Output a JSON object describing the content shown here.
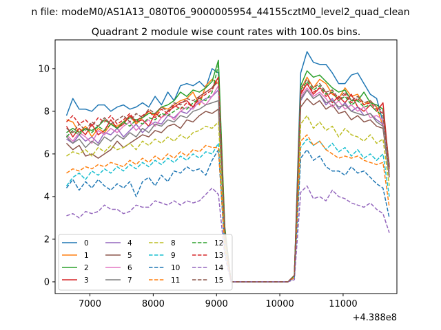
{
  "suptitle": "n file: modeM0/AS1A13_080T06_9000005954_44155cztM0_level2_quad_clean",
  "chart_data": {
    "type": "line",
    "title": "Quadrant 2 module wise count rates with 100.0s bins.",
    "xlabel": "",
    "ylabel": "",
    "offset_text": "+4.388e8",
    "xlim": [
      6450,
      11850
    ],
    "ylim": [
      -0.55,
      11.35
    ],
    "xticks": [
      7000,
      8000,
      9000,
      10000,
      11000
    ],
    "xtick_labels": [
      "7000",
      "8000",
      "9000",
      "10000",
      "11000"
    ],
    "yticks": [
      0,
      2,
      4,
      6,
      8,
      10
    ],
    "ytick_labels": [
      "0",
      "2",
      "4",
      "6",
      "8",
      "10"
    ],
    "grid": false,
    "legend_position": "lower-left",
    "legend_columns": 4,
    "x": [
      6630,
      6730,
      6830,
      6930,
      7030,
      7130,
      7230,
      7330,
      7430,
      7530,
      7630,
      7730,
      7830,
      7930,
      8030,
      8130,
      8230,
      8330,
      8430,
      8530,
      8630,
      8730,
      8830,
      8930,
      9030,
      9130,
      9230,
      9330,
      9430,
      9530,
      9630,
      9730,
      9830,
      9930,
      10030,
      10130,
      10230,
      10330,
      10430,
      10530,
      10630,
      10730,
      10830,
      10930,
      11030,
      11130,
      11230,
      11330,
      11430,
      11530,
      11630,
      11730
    ],
    "series": [
      {
        "name": "0",
        "color": "#1f77b4",
        "dash": "solid",
        "values": [
          7.8,
          8.6,
          8.1,
          8.1,
          8.0,
          8.3,
          8.3,
          8.0,
          8.2,
          8.3,
          8.1,
          8.2,
          8.4,
          8.2,
          8.7,
          8.3,
          8.9,
          8.5,
          9.2,
          9.3,
          9.2,
          9.4,
          9.1,
          10.0,
          9.8,
          2.5,
          0,
          0,
          0,
          0,
          0,
          0,
          0,
          0,
          0,
          0,
          0.3,
          9.8,
          10.8,
          10.3,
          10.2,
          10.2,
          9.8,
          9.3,
          9.3,
          9.7,
          9.8,
          9.3,
          8.8,
          8.6,
          7.5,
          5.5
        ]
      },
      {
        "name": "1",
        "color": "#ff7f0e",
        "dash": "solid",
        "values": [
          7.6,
          7.5,
          7.0,
          7.3,
          6.8,
          7.2,
          7.0,
          7.4,
          7.3,
          7.5,
          7.8,
          7.4,
          7.7,
          8.0,
          7.8,
          8.2,
          8.1,
          8.3,
          8.5,
          8.6,
          8.9,
          8.3,
          9.2,
          9.5,
          9.3,
          2.4,
          0,
          0,
          0,
          0,
          0,
          0,
          0,
          0,
          0,
          0,
          0.3,
          9.0,
          9.6,
          9.1,
          9.5,
          9.3,
          8.8,
          8.6,
          9.1,
          8.7,
          8.8,
          8.3,
          8.5,
          8.2,
          7.3,
          5.2
        ]
      },
      {
        "name": "2",
        "color": "#2ca02c",
        "dash": "solid",
        "values": [
          7.0,
          7.2,
          7.0,
          7.2,
          7.1,
          7.3,
          7.6,
          7.4,
          7.2,
          7.5,
          7.7,
          7.6,
          7.7,
          7.9,
          7.9,
          8.2,
          8.3,
          8.5,
          8.9,
          8.7,
          9.0,
          8.9,
          9.1,
          9.4,
          10.4,
          2.6,
          0,
          0,
          0,
          0,
          0,
          0,
          0,
          0,
          0,
          0,
          0.3,
          9.2,
          9.9,
          9.6,
          9.7,
          9.4,
          9.1,
          8.9,
          9.0,
          8.5,
          8.5,
          8.9,
          8.4,
          8.3,
          8.1,
          5.4
        ]
      },
      {
        "name": "3",
        "color": "#d62728",
        "dash": "solid",
        "values": [
          7.3,
          6.8,
          7.2,
          6.9,
          7.4,
          6.9,
          7.1,
          7.6,
          7.2,
          7.4,
          7.8,
          7.5,
          7.6,
          7.3,
          7.9,
          7.7,
          8.0,
          8.2,
          8.4,
          8.5,
          8.2,
          8.7,
          8.9,
          9.1,
          9.6,
          2.3,
          0,
          0,
          0,
          0,
          0,
          0,
          0,
          0,
          0,
          0,
          0.3,
          8.8,
          9.3,
          8.8,
          9.1,
          8.9,
          8.4,
          8.7,
          8.4,
          8.8,
          8.2,
          8.0,
          8.3,
          8.0,
          8.4,
          5.3
        ]
      },
      {
        "name": "4",
        "color": "#9467bd",
        "dash": "solid",
        "values": [
          6.7,
          6.5,
          6.9,
          6.6,
          6.8,
          6.5,
          7.0,
          6.9,
          7.2,
          6.8,
          7.1,
          7.4,
          7.0,
          7.3,
          7.5,
          7.4,
          7.8,
          7.7,
          8.0,
          7.9,
          8.2,
          8.4,
          8.6,
          8.7,
          9.0,
          2.2,
          0,
          0,
          0,
          0,
          0,
          0,
          0,
          0,
          0,
          0,
          0.3,
          8.5,
          9.0,
          8.6,
          8.8,
          8.3,
          8.6,
          8.1,
          8.4,
          8.0,
          8.2,
          7.8,
          7.9,
          7.6,
          7.4,
          5.0
        ]
      },
      {
        "name": "5",
        "color": "#8c564b",
        "dash": "solid",
        "values": [
          6.5,
          6.2,
          6.4,
          5.9,
          6.0,
          5.8,
          6.0,
          6.2,
          6.6,
          6.3,
          6.5,
          6.7,
          6.9,
          6.8,
          7.1,
          7.0,
          7.3,
          7.4,
          7.2,
          7.6,
          7.5,
          7.8,
          8.0,
          7.9,
          8.1,
          2.1,
          0,
          0,
          0,
          0,
          0,
          0,
          0,
          0,
          0,
          0,
          0.2,
          8.2,
          8.6,
          8.3,
          8.5,
          8.1,
          8.3,
          7.9,
          8.0,
          7.6,
          7.8,
          7.5,
          7.6,
          7.3,
          7.2,
          4.9
        ]
      },
      {
        "name": "6",
        "color": "#e377c2",
        "dash": "solid",
        "values": [
          6.9,
          6.6,
          7.0,
          6.8,
          6.5,
          7.1,
          6.9,
          7.2,
          7.0,
          7.3,
          7.5,
          7.1,
          7.4,
          7.6,
          7.3,
          7.7,
          7.9,
          7.6,
          8.0,
          8.2,
          8.1,
          8.5,
          8.3,
          8.7,
          9.2,
          2.3,
          0,
          0,
          0,
          0,
          0,
          0,
          0,
          0,
          0,
          0,
          0.3,
          8.7,
          9.1,
          8.7,
          8.9,
          8.6,
          8.2,
          8.5,
          8.1,
          8.3,
          8.0,
          8.2,
          7.7,
          7.8,
          7.6,
          5.1
        ]
      },
      {
        "name": "7",
        "color": "#7f7f7f",
        "dash": "solid",
        "values": [
          6.8,
          6.5,
          6.7,
          6.3,
          6.6,
          6.4,
          6.8,
          6.6,
          6.9,
          6.7,
          7.0,
          6.8,
          7.2,
          7.0,
          7.4,
          7.3,
          7.6,
          7.5,
          7.8,
          7.7,
          8.0,
          8.1,
          8.3,
          8.4,
          8.5,
          2.2,
          0,
          0,
          0,
          0,
          0,
          0,
          0,
          0,
          0,
          0,
          0.3,
          8.6,
          9.0,
          8.6,
          8.8,
          8.4,
          8.5,
          8.2,
          8.3,
          8.0,
          7.9,
          7.8,
          7.9,
          7.5,
          7.3,
          5.0
        ]
      },
      {
        "name": "8",
        "color": "#bcbd22",
        "dash": "dashed",
        "values": [
          5.9,
          6.1,
          6.0,
          6.2,
          5.9,
          6.3,
          6.1,
          6.4,
          6.2,
          6.3,
          6.5,
          6.2,
          6.6,
          6.4,
          6.7,
          6.5,
          6.8,
          6.6,
          6.9,
          6.7,
          7.0,
          7.1,
          7.3,
          7.2,
          7.5,
          1.9,
          0,
          0,
          0,
          0,
          0,
          0,
          0,
          0,
          0,
          0,
          0.2,
          7.4,
          7.8,
          7.2,
          7.5,
          7.1,
          7.3,
          6.8,
          7.2,
          6.9,
          6.8,
          6.6,
          6.9,
          6.5,
          6.7,
          4.5
        ]
      },
      {
        "name": "9",
        "color": "#17becf",
        "dash": "dashed",
        "values": [
          4.5,
          4.9,
          5.1,
          4.8,
          5.2,
          5.0,
          5.3,
          5.1,
          5.4,
          5.2,
          5.5,
          5.3,
          5.6,
          5.4,
          5.7,
          5.5,
          5.8,
          5.6,
          5.9,
          5.7,
          6.0,
          5.8,
          6.1,
          6.0,
          6.5,
          1.6,
          0,
          0,
          0,
          0,
          0,
          0,
          0,
          0,
          0,
          0,
          0.2,
          6.3,
          6.7,
          6.4,
          6.6,
          6.2,
          6.5,
          6.1,
          6.3,
          5.9,
          6.2,
          5.8,
          6.0,
          5.7,
          6.0,
          4.0
        ]
      },
      {
        "name": "10",
        "color": "#1f77b4",
        "dash": "dashed",
        "values": [
          4.4,
          4.8,
          4.3,
          4.7,
          4.4,
          4.8,
          4.5,
          4.3,
          4.6,
          4.4,
          4.7,
          4.0,
          4.7,
          4.9,
          4.5,
          5.0,
          4.7,
          5.2,
          5.1,
          5.4,
          5.2,
          5.3,
          5.0,
          5.7,
          6.2,
          1.5,
          0,
          0,
          0,
          0,
          0,
          0,
          0,
          0,
          0,
          0,
          0.2,
          5.8,
          6.2,
          5.7,
          5.9,
          5.4,
          5.2,
          5.2,
          5.0,
          5.4,
          5.1,
          5.2,
          4.9,
          4.6,
          4.4,
          3.0
        ]
      },
      {
        "name": "11",
        "color": "#ff7f0e",
        "dash": "dashed",
        "values": [
          5.1,
          5.3,
          5.2,
          5.4,
          5.3,
          5.5,
          5.4,
          5.6,
          5.5,
          5.4,
          5.7,
          5.5,
          5.8,
          5.6,
          5.9,
          5.7,
          6.0,
          5.8,
          6.1,
          5.9,
          6.2,
          6.1,
          6.4,
          6.3,
          6.3,
          1.6,
          0,
          0,
          0,
          0,
          0,
          0,
          0,
          0,
          0,
          0,
          0.2,
          6.6,
          6.9,
          6.4,
          6.6,
          6.2,
          6.0,
          5.8,
          5.9,
          5.8,
          5.9,
          5.7,
          5.6,
          5.5,
          5.6,
          3.5
        ]
      },
      {
        "name": "12",
        "color": "#2ca02c",
        "dash": "dashed",
        "values": [
          6.8,
          7.1,
          6.9,
          7.2,
          7.0,
          7.3,
          7.1,
          7.4,
          7.2,
          7.5,
          7.3,
          7.6,
          7.4,
          7.7,
          7.6,
          7.9,
          7.8,
          8.0,
          8.2,
          8.1,
          8.4,
          8.6,
          8.5,
          8.9,
          10.2,
          2.5,
          0,
          0,
          0,
          0,
          0,
          0,
          0,
          0,
          0,
          0,
          0.3,
          9.0,
          9.4,
          9.0,
          9.2,
          8.8,
          8.9,
          8.5,
          8.7,
          8.3,
          8.5,
          8.2,
          8.3,
          8.0,
          7.8,
          5.3
        ]
      },
      {
        "name": "13",
        "color": "#d62728",
        "dash": "dashed",
        "values": [
          7.5,
          7.8,
          7.4,
          7.6,
          7.3,
          7.7,
          7.5,
          7.8,
          7.4,
          7.6,
          7.9,
          7.5,
          7.8,
          8.0,
          7.7,
          8.1,
          7.9,
          8.3,
          8.1,
          8.4,
          8.2,
          8.6,
          8.8,
          9.0,
          9.6,
          2.4,
          0,
          0,
          0,
          0,
          0,
          0,
          0,
          0,
          0,
          0,
          0.3,
          8.9,
          9.3,
          8.9,
          9.1,
          8.7,
          8.9,
          8.5,
          8.8,
          8.4,
          8.6,
          8.3,
          8.4,
          8.1,
          7.9,
          5.3
        ]
      },
      {
        "name": "14",
        "color": "#9467bd",
        "dash": "dashed",
        "values": [
          3.1,
          3.2,
          3.0,
          3.3,
          3.2,
          3.3,
          3.6,
          3.4,
          3.4,
          3.2,
          3.3,
          3.6,
          3.5,
          3.5,
          3.8,
          3.7,
          3.6,
          3.8,
          3.6,
          3.8,
          3.7,
          3.8,
          4.1,
          4.4,
          4.1,
          1.2,
          0,
          0,
          0,
          0,
          0,
          0,
          0,
          0,
          0,
          0,
          0.1,
          4.2,
          4.5,
          3.9,
          4.0,
          3.8,
          4.3,
          4.0,
          3.9,
          3.7,
          3.6,
          3.5,
          3.7,
          3.4,
          3.2,
          2.3
        ]
      },
      {
        "name": "15",
        "color": "#8c564b",
        "dash": "dashed",
        "values": [
          7.2,
          7.0,
          7.4,
          7.1,
          7.5,
          7.3,
          7.7,
          7.4,
          7.6,
          7.8,
          7.5,
          7.9,
          7.7,
          8.1,
          7.9,
          8.2,
          8.0,
          8.4,
          8.3,
          8.6,
          8.5,
          8.7,
          8.9,
          9.1,
          9.4,
          2.4,
          0,
          0,
          0,
          0,
          0,
          0,
          0,
          0,
          0,
          0,
          0.3,
          9.1,
          9.5,
          9.1,
          9.3,
          8.9,
          9.0,
          8.6,
          8.9,
          8.5,
          8.7,
          8.4,
          8.5,
          8.2,
          8.0,
          5.4
        ]
      }
    ]
  }
}
